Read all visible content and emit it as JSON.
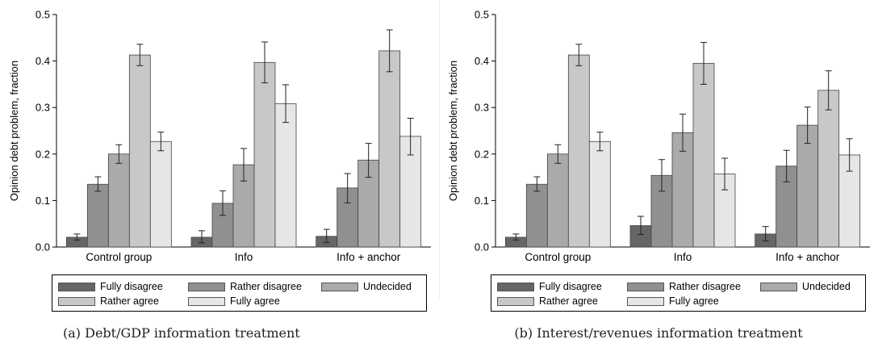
{
  "chart_data": [
    {
      "type": "bar",
      "caption": "(a) Debt/GDP information treatment",
      "ylabel": "Opinion debt problem, fraction",
      "ylim": [
        0,
        0.5
      ],
      "yticks": [
        "0.0",
        "0.1",
        "0.2",
        "0.3",
        "0.4",
        "0.5"
      ],
      "ytick_values": [
        0,
        0.1,
        0.2,
        0.3,
        0.4,
        0.5
      ],
      "categories": [
        "Control group",
        "Info",
        "Info + anchor"
      ],
      "series": [
        {
          "name": "Fully disagree",
          "color": "#666666",
          "values": [
            0.021,
            0.021,
            0.023
          ],
          "err_low": [
            0.015,
            0.009,
            0.01
          ],
          "err_high": [
            0.028,
            0.035,
            0.038
          ]
        },
        {
          "name": "Rather disagree",
          "color": "#909090",
          "values": [
            0.135,
            0.094,
            0.127
          ],
          "err_low": [
            0.12,
            0.068,
            0.095
          ],
          "err_high": [
            0.151,
            0.121,
            0.158
          ]
        },
        {
          "name": "Undecided",
          "color": "#aaaaaa",
          "values": [
            0.2,
            0.177,
            0.187
          ],
          "err_low": [
            0.18,
            0.142,
            0.15
          ],
          "err_high": [
            0.22,
            0.212,
            0.223
          ]
        },
        {
          "name": "Rather agree",
          "color": "#c8c8c8",
          "values": [
            0.413,
            0.397,
            0.422
          ],
          "err_low": [
            0.39,
            0.353,
            0.377
          ],
          "err_high": [
            0.436,
            0.441,
            0.467
          ]
        },
        {
          "name": "Fully agree",
          "color": "#e6e6e6",
          "values": [
            0.227,
            0.308,
            0.238
          ],
          "err_low": [
            0.207,
            0.268,
            0.198
          ],
          "err_high": [
            0.247,
            0.349,
            0.277
          ]
        }
      ],
      "legend_placement": "bottom",
      "grid": false
    },
    {
      "type": "bar",
      "caption": "(b) Interest/revenues information treatment",
      "ylabel": "Opinion debt problem, fraction",
      "ylim": [
        0,
        0.5
      ],
      "yticks": [
        "0.0",
        "0.1",
        "0.2",
        "0.3",
        "0.4",
        "0.5"
      ],
      "ytick_values": [
        0,
        0.1,
        0.2,
        0.3,
        0.4,
        0.5
      ],
      "categories": [
        "Control group",
        "Info",
        "Info + anchor"
      ],
      "series": [
        {
          "name": "Fully disagree",
          "color": "#666666",
          "values": [
            0.021,
            0.046,
            0.028
          ],
          "err_low": [
            0.015,
            0.027,
            0.013
          ],
          "err_high": [
            0.028,
            0.066,
            0.044
          ]
        },
        {
          "name": "Rather disagree",
          "color": "#909090",
          "values": [
            0.135,
            0.154,
            0.174
          ],
          "err_low": [
            0.12,
            0.12,
            0.14
          ],
          "err_high": [
            0.151,
            0.188,
            0.208
          ]
        },
        {
          "name": "Undecided",
          "color": "#aaaaaa",
          "values": [
            0.2,
            0.246,
            0.262
          ],
          "err_low": [
            0.18,
            0.206,
            0.223
          ],
          "err_high": [
            0.22,
            0.286,
            0.301
          ]
        },
        {
          "name": "Rather agree",
          "color": "#c8c8c8",
          "values": [
            0.413,
            0.395,
            0.337
          ],
          "err_low": [
            0.39,
            0.35,
            0.295
          ],
          "err_high": [
            0.436,
            0.44,
            0.379
          ]
        },
        {
          "name": "Fully agree",
          "color": "#e6e6e6",
          "values": [
            0.227,
            0.157,
            0.198
          ],
          "err_low": [
            0.207,
            0.123,
            0.163
          ],
          "err_high": [
            0.247,
            0.191,
            0.233
          ]
        }
      ],
      "legend_placement": "bottom",
      "grid": false
    }
  ]
}
